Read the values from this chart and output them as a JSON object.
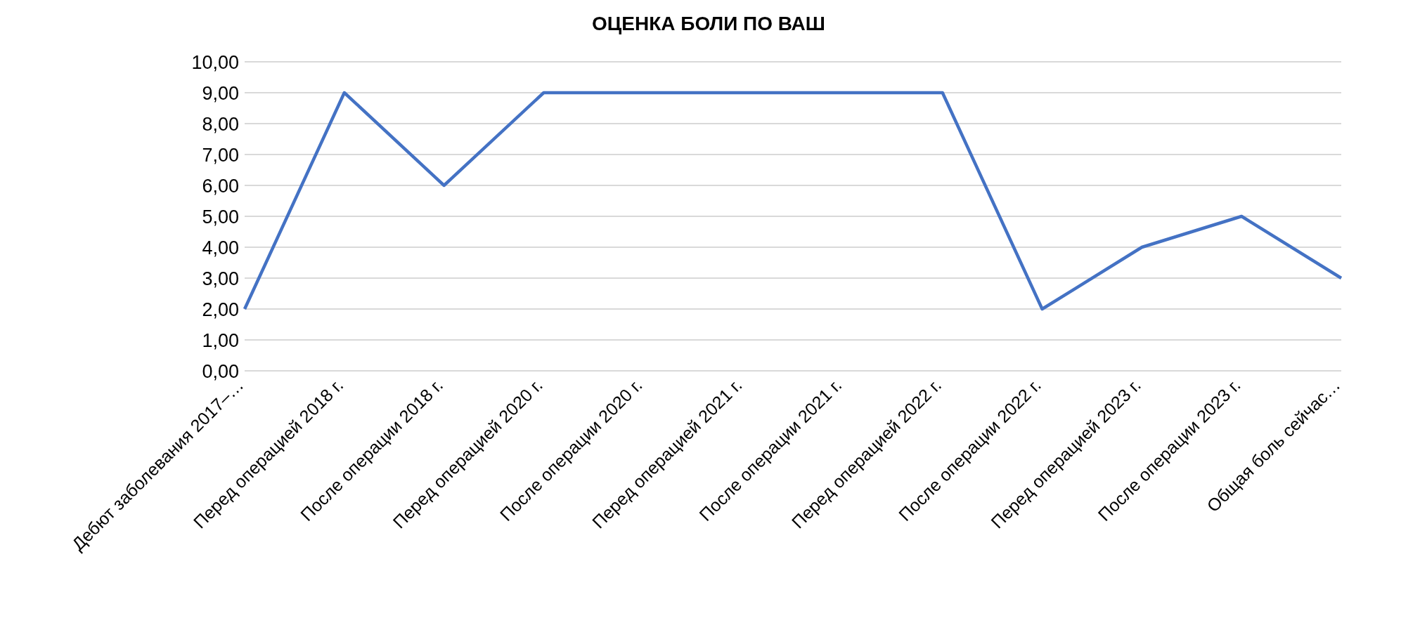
{
  "chart_data": {
    "type": "line",
    "title": "ОЦЕНКА БОЛИ ПО ВАШ",
    "categories": [
      "Дебют заболевания 2017–…",
      "Перед операцией 2018 г.",
      "После операции 2018 г.",
      "Перед операцией 2020 г.",
      "После операции 2020 г.",
      "Перед операцией 2021 г.",
      "После операции 2021 г.",
      "Перед операцией 2022 г.",
      "После операции 2022 г.",
      "Перед операцией 2023 г.",
      "После операции 2023 г.",
      "Общая боль сейчас…"
    ],
    "series": [
      {
        "color": "#4472c4",
        "values": [
          2,
          9,
          6,
          9,
          9,
          9,
          9,
          9,
          2,
          4,
          5,
          3
        ]
      }
    ],
    "ylim": [
      0,
      10
    ],
    "yticks": [
      {
        "value": 0,
        "label": "0,00"
      },
      {
        "value": 1,
        "label": "1,00"
      },
      {
        "value": 2,
        "label": "2,00"
      },
      {
        "value": 3,
        "label": "3,00"
      },
      {
        "value": 4,
        "label": "4,00"
      },
      {
        "value": 5,
        "label": "5,00"
      },
      {
        "value": 6,
        "label": "6,00"
      },
      {
        "value": 7,
        "label": "7,00"
      },
      {
        "value": 8,
        "label": "8,00"
      },
      {
        "value": 9,
        "label": "9,00"
      },
      {
        "value": 10,
        "label": "10,00"
      }
    ],
    "grid": "y",
    "legend": false,
    "marker": "none",
    "line_style": "solid"
  }
}
